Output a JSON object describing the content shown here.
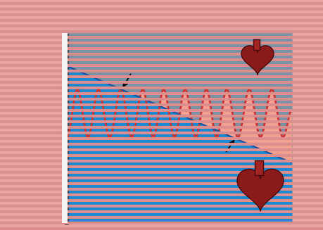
{
  "chart_data": {
    "type": "line",
    "tick_labels": false,
    "xlim": [
      0,
      10
    ],
    "ylim": [
      0,
      4.2
    ],
    "xticks": [],
    "yticks": [
      1,
      2,
      3
    ],
    "series": [
      {
        "color": "#cc3333",
        "x": [
          0,
          0.47,
          0.94,
          1.4,
          1.9,
          2.4,
          2.88,
          3.37,
          3.84,
          4.3,
          4.78,
          5.25,
          5.72,
          6.2,
          6.65,
          7.1,
          7.6,
          8.1,
          8.6,
          9.1,
          9.6,
          10
        ],
        "values": [
          1.9,
          2.95,
          1.9,
          2.95,
          1.9,
          2.95,
          1.9,
          2.95,
          1.9,
          2.95,
          1.9,
          2.95,
          1.9,
          2.95,
          1.9,
          2.95,
          1.9,
          2.95,
          1.9,
          2.95,
          1.9,
          2.5
        ]
      },
      {
        "color": "#1f4f9a",
        "x": [
          0,
          10
        ],
        "values": [
          3.47,
          1.33
        ]
      }
    ]
  }
}
